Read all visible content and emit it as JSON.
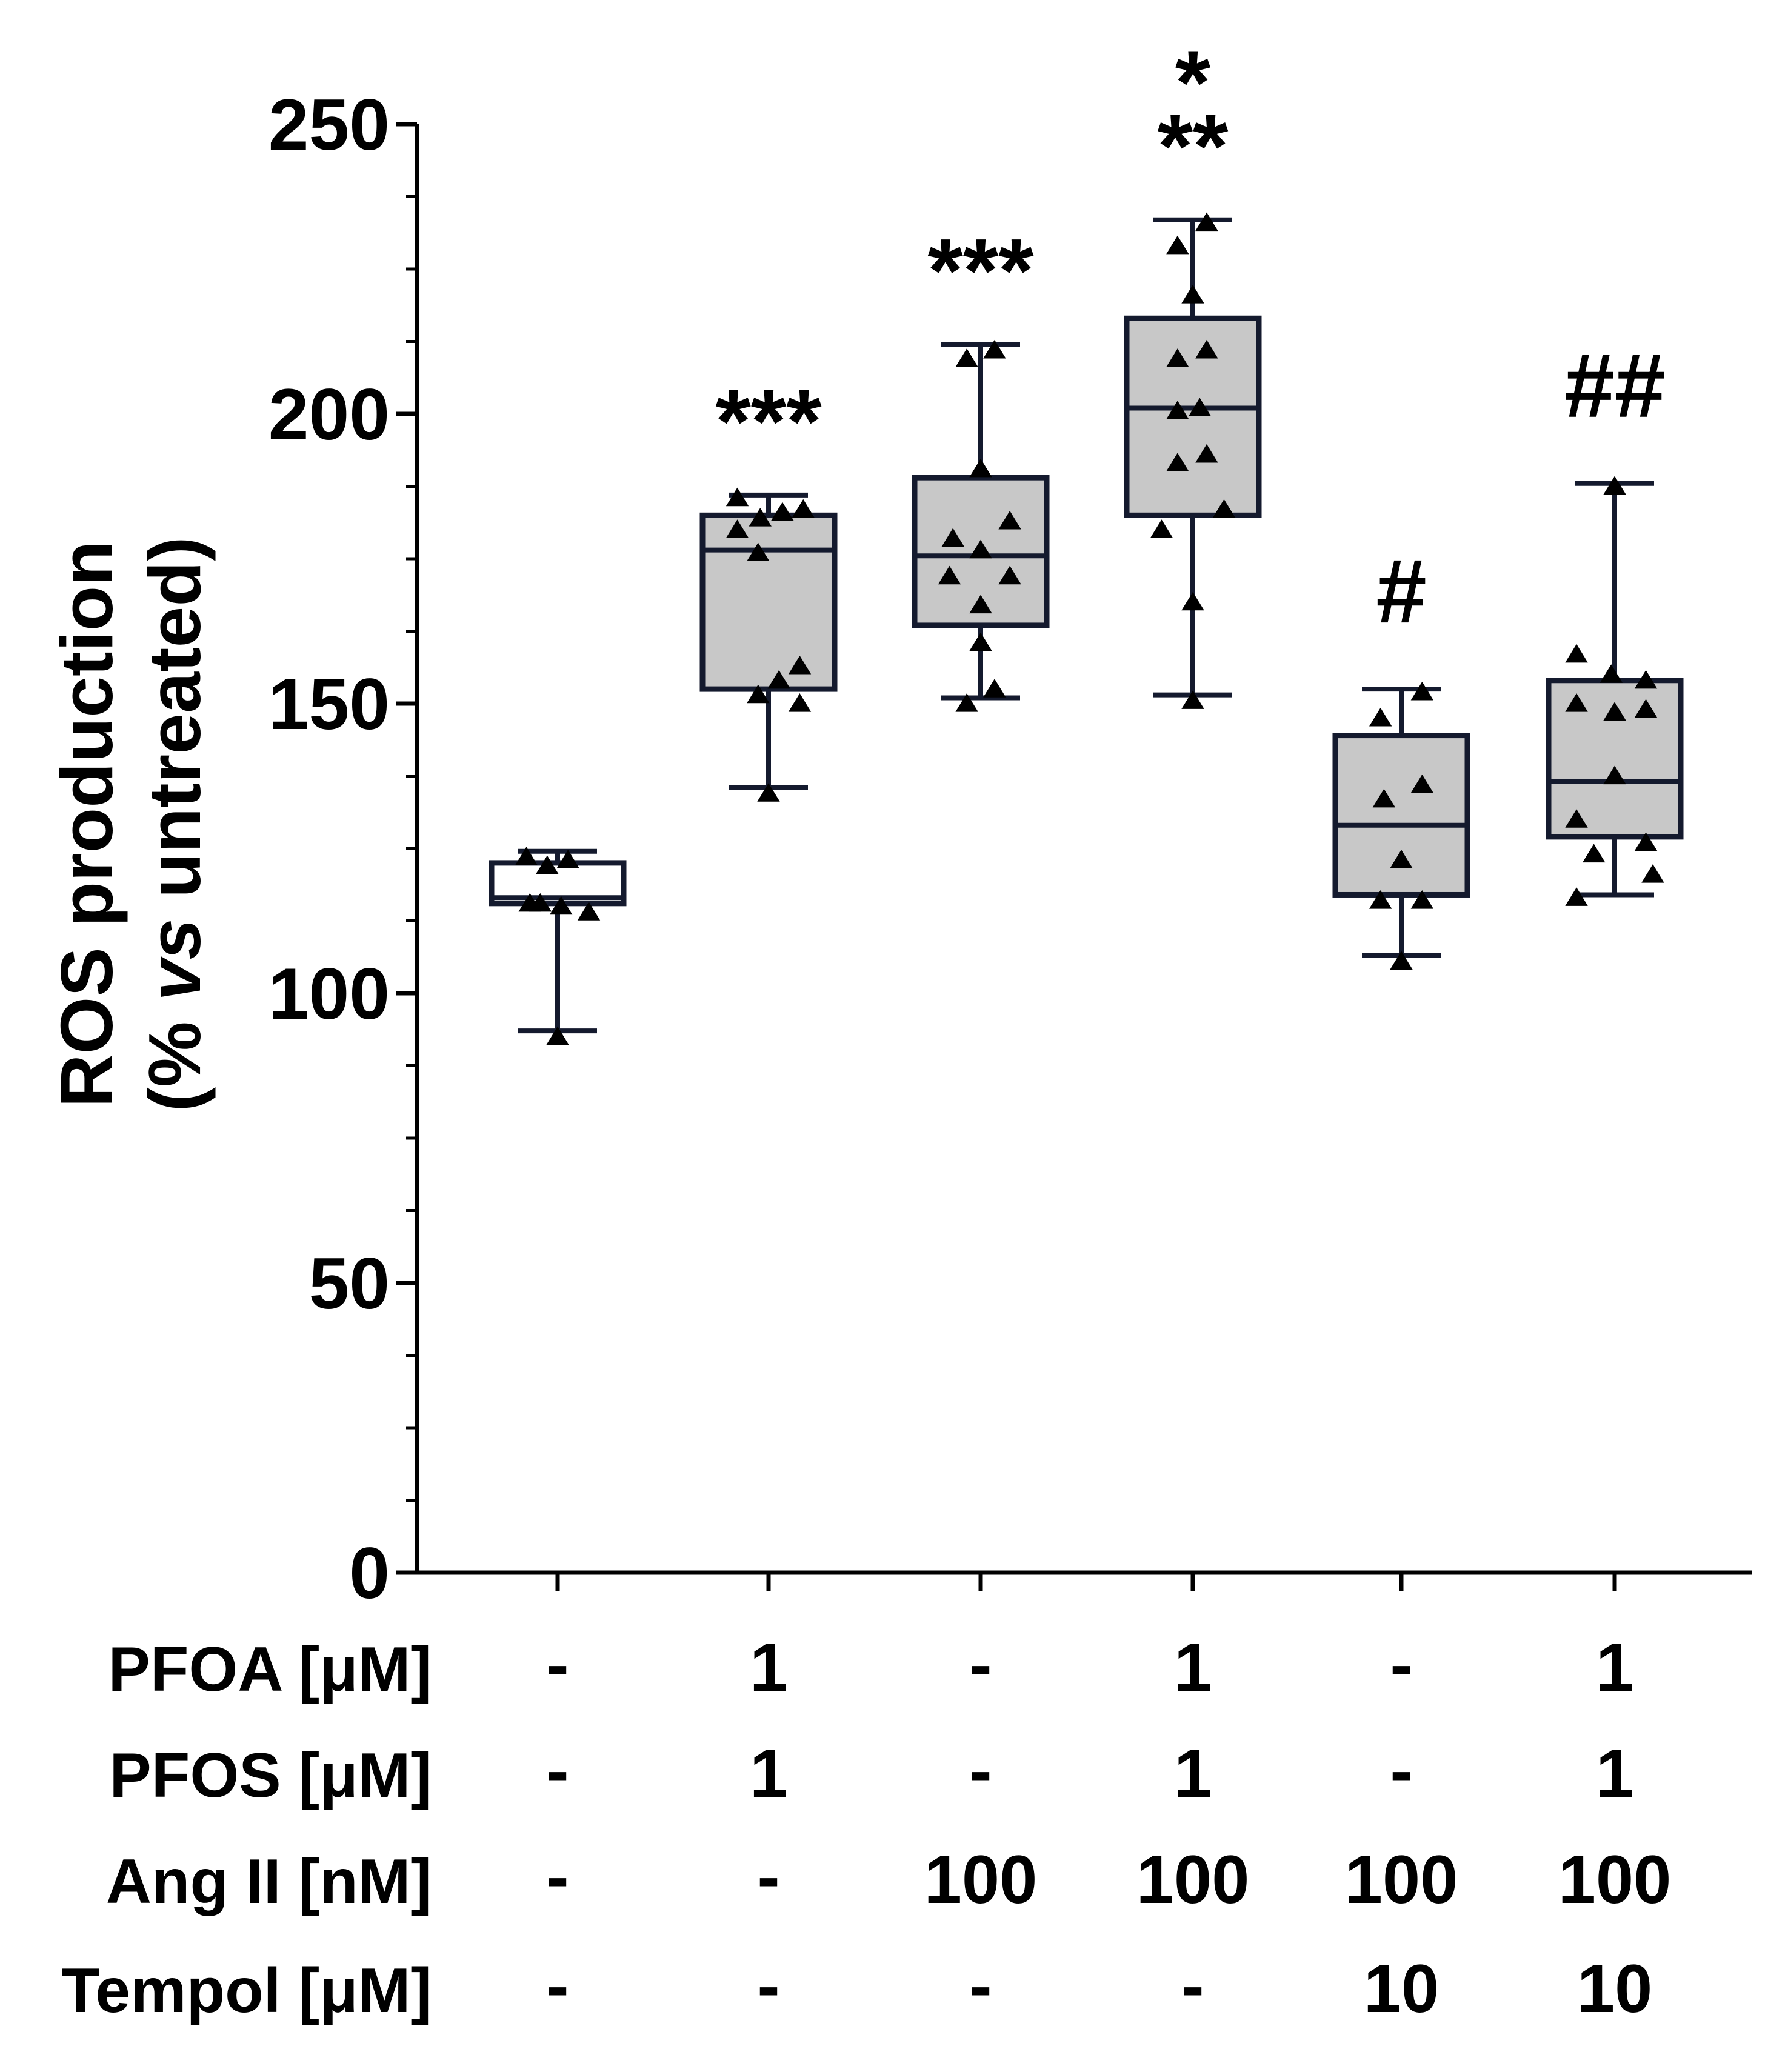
{
  "chart_data": {
    "type": "boxplot",
    "ylabel_line1": "ROS production",
    "ylabel_line2_pre": "(% ",
    "ylabel_line2_italic": "vs",
    "ylabel_line2_post": " untreated)",
    "ylim": [
      0,
      250
    ],
    "yticks": [
      0,
      50,
      100,
      150,
      200,
      250
    ],
    "ytick_labels": [
      "0",
      "50",
      "100",
      "150",
      "200",
      "250"
    ],
    "minor_tick_step": 12.5,
    "groups": [
      {
        "whisker_low": 93.5,
        "q1": 115.5,
        "median": 116.5,
        "q3": 122.5,
        "whisker_high": 124.5,
        "fill": "#ffffff",
        "points": [
          {
            "dx": -0.45,
            "v": 123.5
          },
          {
            "dx": -0.4,
            "v": 115.5
          },
          {
            "dx": -0.25,
            "v": 115.5
          },
          {
            "dx": -0.15,
            "v": 122
          },
          {
            "dx": 0.05,
            "v": 115
          },
          {
            "dx": 0.15,
            "v": 123
          },
          {
            "dx": 0.45,
            "v": 114
          },
          {
            "dx": 0.0,
            "v": 92.5
          }
        ],
        "significance": ""
      },
      {
        "whisker_low": 135.5,
        "q1": 152.5,
        "median": 176.5,
        "q3": 182.5,
        "whisker_high": 186,
        "fill": "#c8c8c8",
        "points": [
          {
            "dx": -0.45,
            "v": 185.5
          },
          {
            "dx": -0.45,
            "v": 180
          },
          {
            "dx": -0.15,
            "v": 176
          },
          {
            "dx": -0.12,
            "v": 182
          },
          {
            "dx": -0.15,
            "v": 151.5
          },
          {
            "dx": 0.15,
            "v": 154
          },
          {
            "dx": 0.2,
            "v": 183
          },
          {
            "dx": 0.5,
            "v": 183.5
          },
          {
            "dx": 0.45,
            "v": 156.5
          },
          {
            "dx": 0.45,
            "v": 150
          },
          {
            "dx": 0.0,
            "v": 134.5
          }
        ],
        "significance": "***"
      },
      {
        "whisker_low": 151,
        "q1": 163.5,
        "median": 175.5,
        "q3": 189,
        "whisker_high": 212,
        "fill": "#c8c8c8",
        "points": [
          {
            "dx": -0.2,
            "v": 209.5
          },
          {
            "dx": 0.2,
            "v": 211
          },
          {
            "dx": 0.0,
            "v": 190.5
          },
          {
            "dx": -0.4,
            "v": 178.5
          },
          {
            "dx": -0.45,
            "v": 172
          },
          {
            "dx": 0.0,
            "v": 176.5
          },
          {
            "dx": 0.42,
            "v": 181.5
          },
          {
            "dx": 0.42,
            "v": 172
          },
          {
            "dx": 0.0,
            "v": 167
          },
          {
            "dx": 0.0,
            "v": 160.5
          },
          {
            "dx": -0.2,
            "v": 150
          },
          {
            "dx": 0.2,
            "v": 152.5
          }
        ],
        "significance": "***"
      },
      {
        "whisker_low": 151.5,
        "q1": 182.5,
        "median": 201,
        "q3": 216.5,
        "whisker_high": 233.5,
        "fill": "#c8c8c8",
        "points": [
          {
            "dx": -0.22,
            "v": 229
          },
          {
            "dx": 0.2,
            "v": 233
          },
          {
            "dx": 0.0,
            "v": 220.5
          },
          {
            "dx": -0.22,
            "v": 209.5
          },
          {
            "dx": 0.2,
            "v": 211
          },
          {
            "dx": -0.22,
            "v": 200.5
          },
          {
            "dx": 0.1,
            "v": 201
          },
          {
            "dx": -0.22,
            "v": 191.5
          },
          {
            "dx": 0.2,
            "v": 193
          },
          {
            "dx": -0.45,
            "v": 180
          },
          {
            "dx": 0.45,
            "v": 183.5
          },
          {
            "dx": 0.0,
            "v": 167.5
          },
          {
            "dx": 0.0,
            "v": 150.5
          }
        ],
        "significance": "*\n**"
      },
      {
        "whisker_low": 106.5,
        "q1": 117,
        "median": 129,
        "q3": 144.5,
        "whisker_high": 152.5,
        "fill": "#c8c8c8",
        "points": [
          {
            "dx": -0.3,
            "v": 147.5
          },
          {
            "dx": 0.3,
            "v": 152
          },
          {
            "dx": -0.25,
            "v": 133.5
          },
          {
            "dx": 0.3,
            "v": 136
          },
          {
            "dx": 0.0,
            "v": 123
          },
          {
            "dx": -0.3,
            "v": 116
          },
          {
            "dx": 0.3,
            "v": 116
          },
          {
            "dx": 0.0,
            "v": 105.5
          }
        ],
        "significance": "#"
      },
      {
        "whisker_low": 117,
        "q1": 127,
        "median": 136.5,
        "q3": 154,
        "whisker_high": 188,
        "fill": "#c8c8c8",
        "points": [
          {
            "dx": -0.55,
            "v": 158.5
          },
          {
            "dx": -0.55,
            "v": 150
          },
          {
            "dx": -0.05,
            "v": 155
          },
          {
            "dx": 0.45,
            "v": 154
          },
          {
            "dx": 0.45,
            "v": 149
          },
          {
            "dx": 0.0,
            "v": 148.5
          },
          {
            "dx": 0.0,
            "v": 137.5
          },
          {
            "dx": -0.55,
            "v": 130
          },
          {
            "dx": -0.3,
            "v": 124
          },
          {
            "dx": 0.45,
            "v": 126
          },
          {
            "dx": 0.55,
            "v": 120.5
          },
          {
            "dx": -0.55,
            "v": 116.5
          },
          {
            "dx": 0.0,
            "v": 187.5
          }
        ],
        "significance": "##"
      }
    ],
    "table": {
      "rows": [
        {
          "label": "PFOA  [μM]",
          "values": [
            "-",
            "1",
            "-",
            "1",
            "-",
            "1"
          ]
        },
        {
          "label": "PFOS  [μM]",
          "values": [
            "-",
            "1",
            "-",
            "1",
            "-",
            "1"
          ]
        },
        {
          "label": "Ang II  [nM]",
          "values": [
            "-",
            "-",
            "100",
            "100",
            "100",
            "100"
          ]
        },
        {
          "label": "Tempol [μM]",
          "values": [
            "-",
            "-",
            "-",
            "-",
            "10",
            "10"
          ]
        }
      ]
    }
  }
}
